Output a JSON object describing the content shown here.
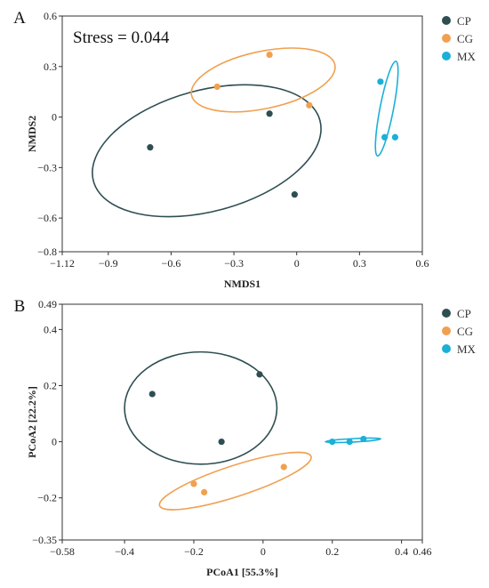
{
  "colors": {
    "CP": "#2e4e52",
    "CG": "#f0a050",
    "MX": "#1ab0d8"
  },
  "chart_data": [
    {
      "panel": "A",
      "type": "scatter",
      "title": "",
      "xlabel": "NMDS1",
      "ylabel": "NMDS2",
      "annotation": "Stress = 0.044",
      "xlim": [
        -1.12,
        0.6
      ],
      "ylim": [
        -0.8,
        0.6
      ],
      "xticks": [
        -1.12,
        -0.9,
        -0.6,
        -0.3,
        0,
        0.3,
        0.6
      ],
      "xtick_labels": [
        "−1.12",
        "−0.9",
        "−0.6",
        "−0.3",
        "0",
        "0.3",
        "0.6"
      ],
      "yticks": [
        -0.8,
        -0.6,
        -0.3,
        0,
        0.3,
        0.6
      ],
      "ytick_labels": [
        "−0.8",
        "−0.6",
        "−0.3",
        "0",
        "0.3",
        "0.6"
      ],
      "grid": false,
      "legend_position": "outside-top-right",
      "series": [
        {
          "name": "CP",
          "x": [
            -0.7,
            -0.13,
            -0.01
          ],
          "y": [
            -0.18,
            0.02,
            -0.46
          ]
        },
        {
          "name": "CG",
          "x": [
            -0.38,
            -0.13,
            0.06
          ],
          "y": [
            0.18,
            0.37,
            0.07
          ]
        },
        {
          "name": "MX",
          "x": [
            0.4,
            0.42,
            0.47
          ],
          "y": [
            0.21,
            -0.12,
            -0.12
          ]
        }
      ],
      "ellipses": [
        {
          "group": "CP",
          "cx": -0.43,
          "cy": -0.2,
          "rx": 0.56,
          "ry": 0.36,
          "angle_deg": -15
        },
        {
          "group": "CG",
          "cx": -0.16,
          "cy": 0.22,
          "rx": 0.35,
          "ry": 0.17,
          "angle_deg": -12
        },
        {
          "group": "MX",
          "cx": 0.43,
          "cy": 0.05,
          "rx": 0.23,
          "ry": 0.04,
          "angle_deg": -79
        }
      ]
    },
    {
      "panel": "B",
      "type": "scatter",
      "title": "",
      "xlabel": "PCoA1 [55.3%]",
      "ylabel": "PCoA2 [22.2%]",
      "xlim": [
        -0.58,
        0.46
      ],
      "ylim": [
        -0.35,
        0.49
      ],
      "xticks": [
        -0.58,
        -0.4,
        -0.2,
        0,
        0.2,
        0.4,
        0.46
      ],
      "xtick_labels": [
        "−0.58",
        "−0.4",
        "−0.2",
        "0",
        "0.2",
        "0.4",
        "0.46"
      ],
      "yticks": [
        -0.35,
        -0.2,
        0,
        0.2,
        0.4,
        0.49
      ],
      "ytick_labels": [
        "−0.35",
        "−0.2",
        "0",
        "0.2",
        "0.4",
        "0.49"
      ],
      "grid": false,
      "legend_position": "outside-top-right",
      "series": [
        {
          "name": "CP",
          "x": [
            -0.32,
            -0.12,
            -0.01
          ],
          "y": [
            0.17,
            0.0,
            0.24
          ]
        },
        {
          "name": "CG",
          "x": [
            -0.2,
            -0.17,
            0.06
          ],
          "y": [
            -0.15,
            -0.18,
            -0.09
          ]
        },
        {
          "name": "MX",
          "x": [
            0.2,
            0.25,
            0.29
          ],
          "y": [
            0.0,
            0.0,
            0.01
          ]
        }
      ],
      "ellipses": [
        {
          "group": "CP",
          "cx": -0.18,
          "cy": 0.12,
          "rx": 0.22,
          "ry": 0.2,
          "angle_deg": 0
        },
        {
          "group": "CG",
          "cx": -0.08,
          "cy": -0.14,
          "rx": 0.23,
          "ry": 0.055,
          "angle_deg": -18
        },
        {
          "group": "MX",
          "cx": 0.26,
          "cy": 0.005,
          "rx": 0.08,
          "ry": 0.006,
          "angle_deg": -3
        }
      ]
    }
  ],
  "legend": [
    {
      "name": "CP",
      "label": "CP"
    },
    {
      "name": "CG",
      "label": "CG"
    },
    {
      "name": "MX",
      "label": "MX"
    }
  ]
}
